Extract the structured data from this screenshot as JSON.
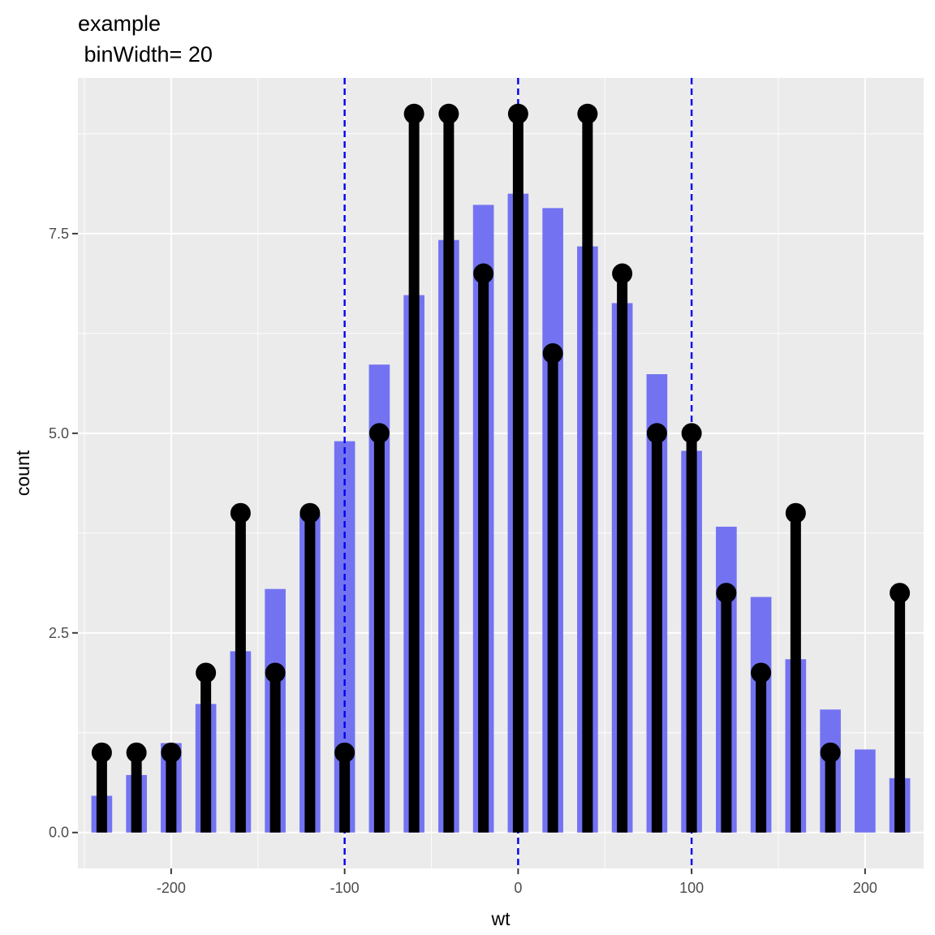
{
  "chart_data": {
    "type": "bar",
    "title": "example",
    "subtitle": " binWidth= 20",
    "xlabel": "wt",
    "ylabel": "count",
    "xlim": [
      -253.75,
      233.75
    ],
    "ylim": [
      -0.45,
      9.45
    ],
    "x_ticks": [
      {
        "value": -200,
        "label": "-200"
      },
      {
        "value": -100,
        "label": "-100"
      },
      {
        "value": 0,
        "label": "0"
      },
      {
        "value": 100,
        "label": "100"
      },
      {
        "value": 200,
        "label": "200"
      }
    ],
    "y_ticks": [
      {
        "value": 0,
        "label": "0.0"
      },
      {
        "value": 2.5,
        "label": "2.5"
      },
      {
        "value": 5,
        "label": "5.0"
      },
      {
        "value": 7.5,
        "label": "7.5"
      }
    ],
    "grid": true,
    "bin_width": 20,
    "x": [
      -240,
      -220,
      -200,
      -180,
      -160,
      -140,
      -120,
      -100,
      -80,
      -60,
      -40,
      -20,
      0,
      20,
      40,
      60,
      80,
      100,
      120,
      140,
      160,
      180,
      200,
      220
    ],
    "series": [
      {
        "kind": "bar",
        "color": "#7373f2",
        "values": [
          0.46,
          0.72,
          1.12,
          1.61,
          2.27,
          3.05,
          3.98,
          4.9,
          5.86,
          6.73,
          7.42,
          7.86,
          8.0,
          7.82,
          7.34,
          6.63,
          5.74,
          4.78,
          3.83,
          2.95,
          2.17,
          1.54,
          1.04,
          0.68
        ]
      },
      {
        "kind": "lollipop",
        "color": "#000000",
        "values": [
          1,
          1,
          1,
          2,
          4,
          2,
          4,
          1,
          5,
          9,
          9,
          7,
          9,
          6,
          9,
          7,
          5,
          5,
          3,
          2,
          4,
          1,
          0,
          3
        ]
      }
    ],
    "reference_lines": {
      "axis": "x",
      "values": [
        -100,
        0,
        100
      ],
      "color": "#0000ee",
      "style": "dashed"
    }
  }
}
